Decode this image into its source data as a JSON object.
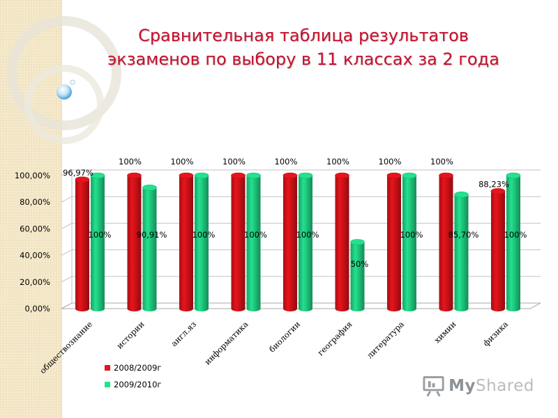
{
  "title": {
    "line1": "Сравнительная таблица результатов",
    "line2": "экзаменов  по выбору   в 11 классах  за 2 года"
  },
  "colors": {
    "series_2008": "#e8141b",
    "series_2009": "#22e28e",
    "title": "#c8102e",
    "background_strip": "#f3e6c8"
  },
  "chart_data": {
    "type": "bar",
    "categories": [
      "обществознание",
      "истории",
      "англ.яз",
      "информатика",
      "биологии",
      "география",
      "литература",
      "химии",
      "физика"
    ],
    "series": [
      {
        "name": "2008/2009г",
        "values": [
          96.97,
          100,
          100,
          100,
          100,
          100,
          100,
          100,
          88.23
        ],
        "labels": [
          "96,97%",
          "100%",
          "100%",
          "100%",
          "100%",
          "100%",
          "100%",
          "100%",
          "88,23%"
        ]
      },
      {
        "name": "2009/2010г",
        "values": [
          100,
          90.91,
          100,
          100,
          100,
          50,
          100,
          85.7,
          100
        ],
        "labels": [
          "100%",
          "90,91%",
          "100%",
          "100%",
          "100%",
          "50%",
          "100%",
          "85,70%",
          "100%"
        ]
      }
    ],
    "y_ticks": [
      "0,00%",
      "20,00%",
      "40,00%",
      "60,00%",
      "80,00%",
      "100,00%"
    ],
    "ylim": [
      0,
      100
    ],
    "grid": true,
    "legend_position": "bottom-left"
  },
  "logo": {
    "icon": "presentation-board-icon",
    "brand_prefix": "My",
    "brand_suffix": "Shared"
  }
}
